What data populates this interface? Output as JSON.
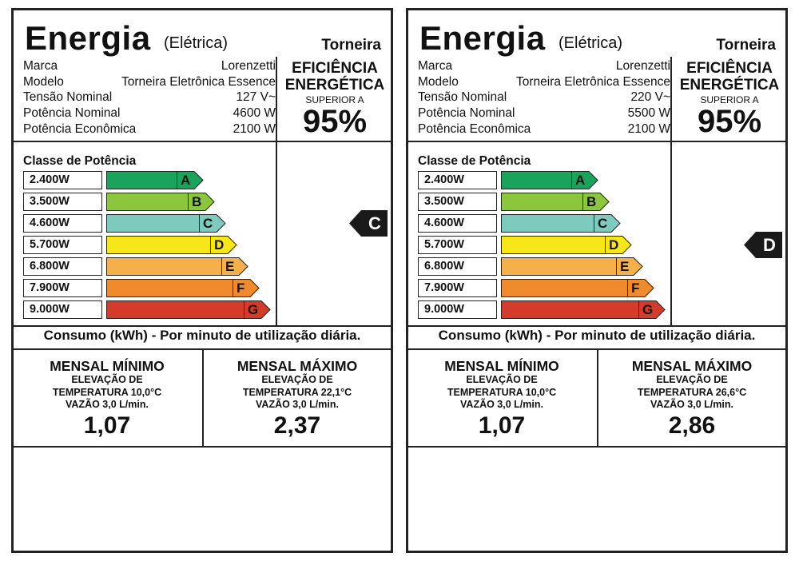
{
  "labels": [
    {
      "title": "Energia",
      "subtitle": "(Elétrica)",
      "product_type": "Torneira",
      "specs": [
        {
          "label": "Marca",
          "value": "Lorenzetti"
        },
        {
          "label": "Modelo",
          "value": "Torneira Eletrônica Essence"
        },
        {
          "label": "Tensão Nominal",
          "value": "127 V~"
        },
        {
          "label": "Potência Nominal",
          "value": "4600 W"
        },
        {
          "label": "Potência Econômica",
          "value": "2100 W"
        }
      ],
      "efficiency": {
        "line1": "EFICIÊNCIA",
        "line2": "ENERGÉTICA",
        "sub": "SUPERIOR A",
        "value": "95%"
      },
      "class_title": "Classe de Potência",
      "classes": [
        {
          "power": "2.400W",
          "letter": "A",
          "color": "#1aa35a"
        },
        {
          "power": "3.500W",
          "letter": "B",
          "color": "#8cc63f"
        },
        {
          "power": "4.600W",
          "letter": "C",
          "color": "#7fcabf"
        },
        {
          "power": "5.700W",
          "letter": "D",
          "color": "#f7e619"
        },
        {
          "power": "6.800W",
          "letter": "E",
          "color": "#f6b04a"
        },
        {
          "power": "7.900W",
          "letter": "F",
          "color": "#ef8a2d"
        },
        {
          "power": "9.000W",
          "letter": "G",
          "color": "#d33c2b"
        }
      ],
      "selected_class": "C",
      "consumo_title": "Consumo (kWh) - Por minuto de utilização diária.",
      "min": {
        "title": "MENSAL MÍNIMO",
        "line1": "ELEVAÇÃO DE",
        "line2": "TEMPERATURA 10,0°C",
        "line3": "VAZÃO 3,0 L/min.",
        "value": "1,07"
      },
      "max": {
        "title": "MENSAL MÁXIMO",
        "line1": "ELEVAÇÃO DE",
        "line2": "TEMPERATURA 22,1°C",
        "line3": "VAZÃO 3,0 L/min.",
        "value": "2,37"
      }
    },
    {
      "title": "Energia",
      "subtitle": "(Elétrica)",
      "product_type": "Torneira",
      "specs": [
        {
          "label": "Marca",
          "value": "Lorenzetti"
        },
        {
          "label": "Modelo",
          "value": "Torneira Eletrônica Essence"
        },
        {
          "label": "Tensão Nominal",
          "value": "220 V~"
        },
        {
          "label": "Potência Nominal",
          "value": "5500 W"
        },
        {
          "label": "Potência Econômica",
          "value": "2100 W"
        }
      ],
      "efficiency": {
        "line1": "EFICIÊNCIA",
        "line2": "ENERGÉTICA",
        "sub": "SUPERIOR A",
        "value": "95%"
      },
      "class_title": "Classe de Potência",
      "classes": [
        {
          "power": "2.400W",
          "letter": "A",
          "color": "#1aa35a"
        },
        {
          "power": "3.500W",
          "letter": "B",
          "color": "#8cc63f"
        },
        {
          "power": "4.600W",
          "letter": "C",
          "color": "#7fcabf"
        },
        {
          "power": "5.700W",
          "letter": "D",
          "color": "#f7e619"
        },
        {
          "power": "6.800W",
          "letter": "E",
          "color": "#f6b04a"
        },
        {
          "power": "7.900W",
          "letter": "F",
          "color": "#ef8a2d"
        },
        {
          "power": "9.000W",
          "letter": "G",
          "color": "#d33c2b"
        }
      ],
      "selected_class": "D",
      "consumo_title": "Consumo (kWh) - Por minuto de utilização diária.",
      "min": {
        "title": "MENSAL MÍNIMO",
        "line1": "ELEVAÇÃO DE",
        "line2": "TEMPERATURA 10,0°C",
        "line3": "VAZÃO 3,0 L/min.",
        "value": "1,07"
      },
      "max": {
        "title": "MENSAL MÁXIMO",
        "line1": "ELEVAÇÃO DE",
        "line2": "TEMPERATURA 26,6°C",
        "line3": "VAZÃO 3,0 L/min.",
        "value": "2,86"
      }
    }
  ]
}
